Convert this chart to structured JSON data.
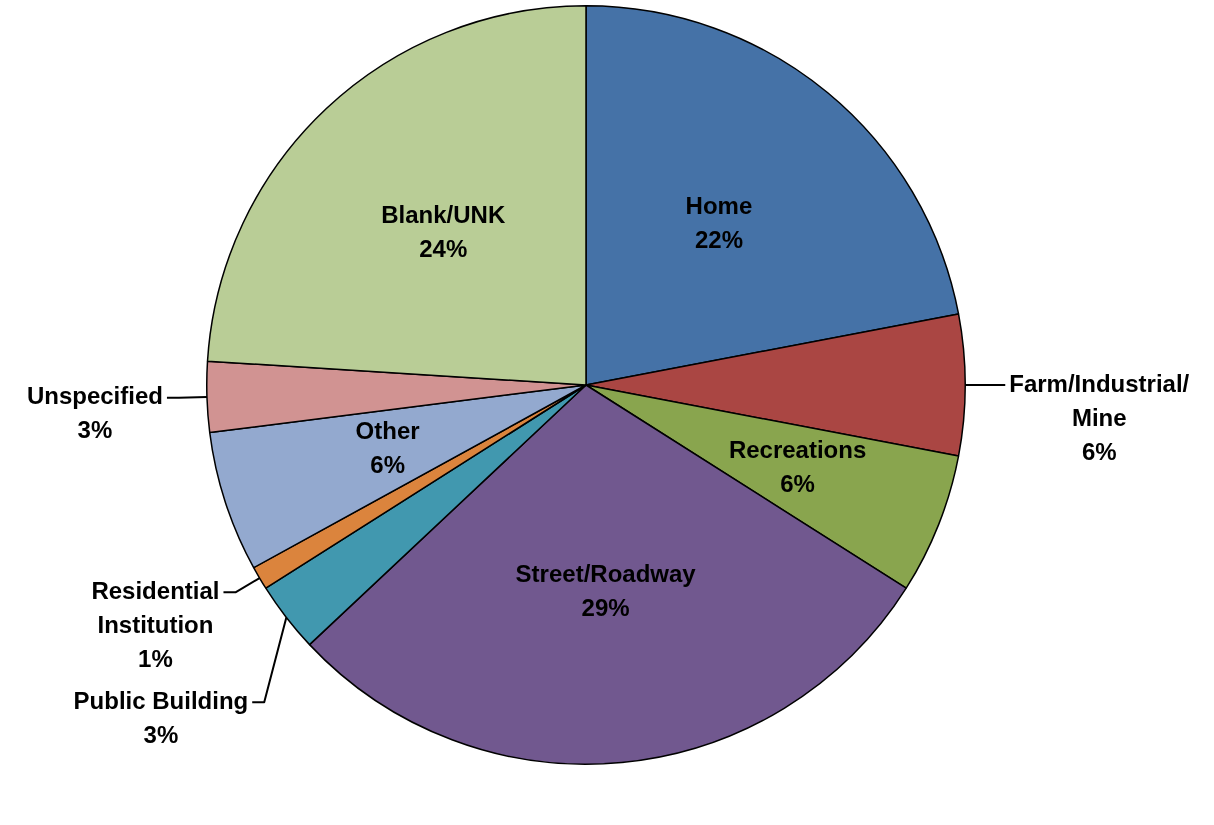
{
  "chart_data": {
    "type": "pie",
    "categories": [
      "Home",
      "Farm/Industrial/Mine",
      "Recreations",
      "Street/Roadway",
      "Public Building",
      "Residential Institution",
      "Other",
      "Unspecified",
      "Blank/UNK"
    ],
    "values": [
      22,
      6,
      6,
      29,
      3,
      1,
      6,
      3,
      24
    ],
    "colors": [
      "#4572a7",
      "#aa4643",
      "#89a54e",
      "#71588f",
      "#4198af",
      "#db843d",
      "#93a9cf",
      "#d19392",
      "#b9cd96"
    ],
    "value_labels": [
      "22%",
      "6%",
      "6%",
      "29%",
      "3%",
      "1%",
      "6%",
      "3%",
      "24%"
    ]
  }
}
